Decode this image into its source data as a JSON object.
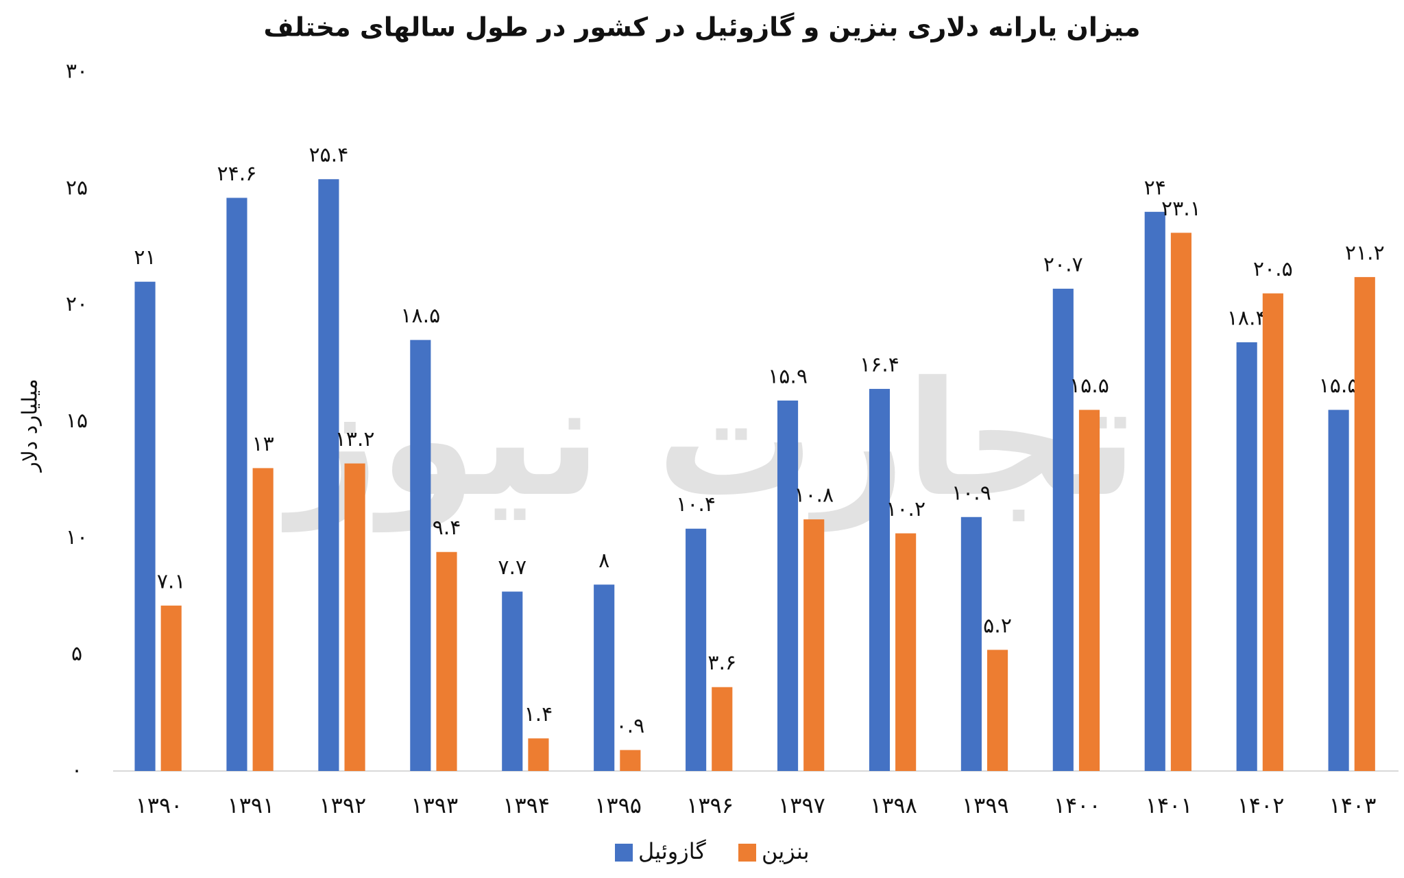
{
  "chart_data": {
    "type": "bar",
    "title": "میزان یارانه دلاری بنزین و گازوئیل در کشور در طول سالهای مختلف",
    "y_label": "میلیارد دلار",
    "watermark": "تجارت نیوز",
    "categories": [
      "۱۳۹۰",
      "۱۳۹۱",
      "۱۳۹۲",
      "۱۳۹۳",
      "۱۳۹۴",
      "۱۳۹۵",
      "۱۳۹۶",
      "۱۳۹۷",
      "۱۳۹۸",
      "۱۳۹۹",
      "۱۴۰۰",
      "۱۴۰۱",
      "۱۴۰۲",
      "۱۴۰۳"
    ],
    "series": [
      {
        "name": "گازوئیل",
        "color": "#4472c4",
        "values": [
          21,
          24.6,
          25.4,
          18.5,
          7.7,
          8,
          10.4,
          15.9,
          16.4,
          10.9,
          20.7,
          24,
          18.4,
          15.5
        ],
        "value_labels": [
          "۲۱",
          "۲۴.۶",
          "۲۵.۴",
          "۱۸.۵",
          "۷.۷",
          "۸",
          "۱۰.۴",
          "۱۵.۹",
          "۱۶.۴",
          "۱۰.۹",
          "۲۰.۷",
          "۲۴",
          "۱۸.۴",
          "۱۵.۵"
        ]
      },
      {
        "name": "بنزین",
        "color": "#ed7d31",
        "values": [
          7.1,
          13,
          13.2,
          9.4,
          1.4,
          0.9,
          3.6,
          10.8,
          10.2,
          5.2,
          15.5,
          23.1,
          20.5,
          21.2
        ],
        "value_labels": [
          "۷.۱",
          "۱۳",
          "۱۳.۲",
          "۹.۴",
          "۱.۴",
          "۰.۹",
          "۳.۶",
          "۱۰.۸",
          "۱۰.۲",
          "۵.۲",
          "۱۵.۵",
          "۲۳.۱",
          "۲۰.۵",
          "۲۱.۲"
        ]
      }
    ],
    "ylim": [
      0,
      30
    ],
    "yticks": [
      {
        "value": 0,
        "label": "۰"
      },
      {
        "value": 5,
        "label": "۵"
      },
      {
        "value": 10,
        "label": "۱۰"
      },
      {
        "value": 15,
        "label": "۱۵"
      },
      {
        "value": 20,
        "label": "۲۰"
      },
      {
        "value": 25,
        "label": "۲۵"
      },
      {
        "value": 30,
        "label": "۳۰"
      }
    ],
    "grid": false
  }
}
